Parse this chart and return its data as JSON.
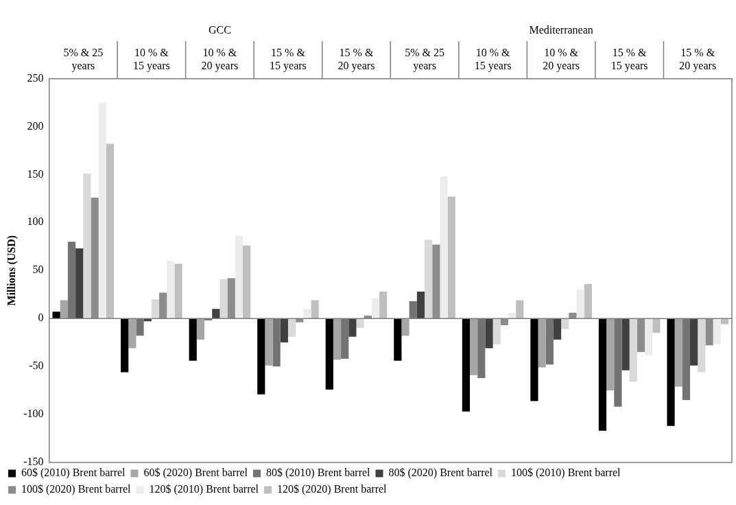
{
  "chart_data": {
    "type": "bar",
    "categories": [
      "5% & 25 years",
      "10 % & 15 years",
      "10 % & 20 years",
      "15 % & 15 years",
      "15 % & 20 years",
      "5% & 25 years",
      "10 % & 15 years",
      "10 % & 20 years",
      "15 % & 15 years",
      "15 % & 20 years"
    ],
    "annotations": [
      "GCC",
      "Mediterranean"
    ],
    "ylabel": "Millions (USD)",
    "ylim": [
      -150,
      250
    ],
    "yticks": [
      -150,
      -100,
      -50,
      0,
      50,
      100,
      150,
      200,
      250
    ],
    "legend": "bottom",
    "series": [
      {
        "name": "60$ (2010) Brent barrel",
        "color": "#000000",
        "values": [
          7,
          -56,
          -44,
          -79,
          -74,
          -44,
          -97,
          -86,
          -117,
          -112
        ]
      },
      {
        "name": "60$ (2020) Brent barrel",
        "color": "#a6a6a6",
        "values": [
          19,
          -31,
          -22,
          -49,
          -43,
          -18,
          -59,
          -51,
          -75,
          -71
        ]
      },
      {
        "name": "80$ (2010) Brent barrel",
        "color": "#737373",
        "values": [
          80,
          -18,
          -2,
          -50,
          -42,
          18,
          -62,
          -48,
          -92,
          -85
        ]
      },
      {
        "name": "80$ (2020) Brent barrel",
        "color": "#404040",
        "values": [
          73,
          -3,
          10,
          -25,
          -19,
          28,
          -31,
          -22,
          -54,
          -49
        ]
      },
      {
        "name": "100$ (2010) Brent barrel",
        "color": "#d9d9d9",
        "values": [
          151,
          20,
          41,
          -19,
          -10,
          82,
          -27,
          -11,
          -66,
          -56
        ]
      },
      {
        "name": "100$ (2020) Brent barrel",
        "color": "#8c8c8c",
        "values": [
          126,
          27,
          42,
          -4,
          3,
          77,
          -7,
          6,
          -35,
          -28
        ]
      },
      {
        "name": "120$ (2010) Brent barrel",
        "color": "#ececec",
        "values": [
          225,
          60,
          86,
          10,
          21,
          148,
          6,
          30,
          -38,
          -27
        ]
      },
      {
        "name": "120$ (2020) Brent barrel",
        "color": "#bfbfbf",
        "values": [
          182,
          57,
          76,
          19,
          28,
          127,
          19,
          36,
          -15,
          -6
        ]
      }
    ]
  }
}
